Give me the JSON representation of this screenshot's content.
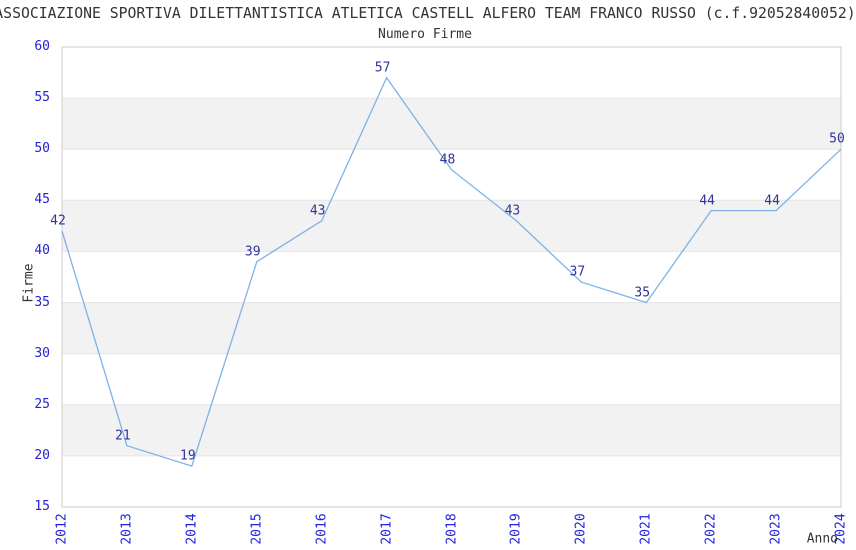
{
  "chart_data": {
    "type": "line",
    "title": "ASSOCIAZIONE SPORTIVA DILETTANTISTICA ATLETICA CASTELL ALFERO TEAM FRANCO RUSSO (c.f.92052840052)",
    "subtitle": "Numero Firme",
    "xlabel": "Anno",
    "ylabel": "Firme",
    "x": [
      2012,
      2013,
      2014,
      2015,
      2016,
      2017,
      2018,
      2019,
      2020,
      2021,
      2022,
      2023,
      2024
    ],
    "values": [
      42,
      21,
      19,
      39,
      43,
      57,
      48,
      43,
      37,
      35,
      44,
      44,
      50
    ],
    "ylim": [
      15,
      60
    ],
    "ytick_step": 5,
    "xlim": [
      2012,
      2024
    ],
    "grid": true,
    "legend": false,
    "point_labels": true,
    "band_fill_alternating": true,
    "colors": {
      "line": "#7fb2e5",
      "tick_label": "#2222dd",
      "point_label": "#333399",
      "band": "#f2f2f2",
      "grid": "#e5e5e5",
      "border": "#cccccc",
      "text": "#333333"
    }
  }
}
